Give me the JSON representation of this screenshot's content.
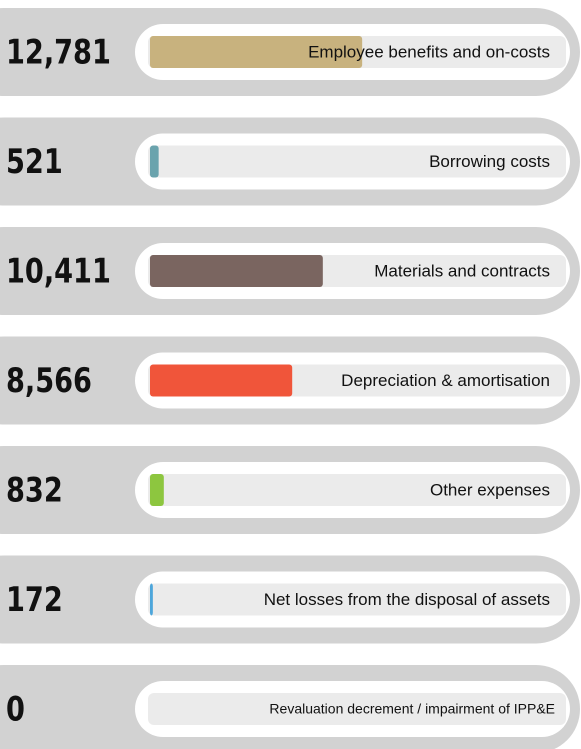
{
  "chart_data": {
    "type": "bar",
    "orientation": "horizontal",
    "categories": [
      "Employee benefits and on-costs",
      "Borrowing costs",
      "Materials and contracts",
      "Depreciation & amortisation",
      "Other expenses",
      "Net losses from the disposal of assets",
      "Revaluation decrement / impairment of IPP&E"
    ],
    "values": [
      12781,
      521,
      10411,
      8566,
      832,
      172,
      0
    ],
    "value_labels": [
      "12,781",
      "521",
      "10,411",
      "8,566",
      "832",
      "172",
      "0"
    ],
    "colors": [
      "#c8b27e",
      "#6aa3ad",
      "#7a6560",
      "#f0553a",
      "#8dc63f",
      "#4da6db",
      "#999999"
    ],
    "xlim": [
      0,
      25000
    ]
  }
}
